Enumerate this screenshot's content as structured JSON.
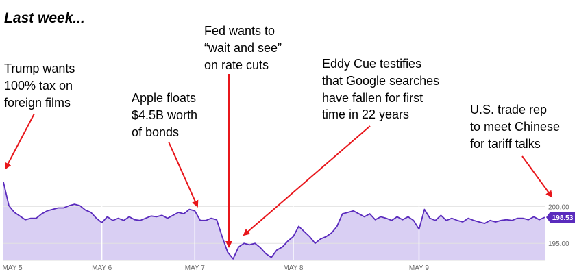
{
  "chart_data": {
    "type": "line",
    "title": "Last week...",
    "color": "#5a2bbd",
    "fill": "#d9cff3",
    "values": [
      203.3,
      200.1,
      199.2,
      198.7,
      198.2,
      198.4,
      198.4,
      199.0,
      199.4,
      199.6,
      199.8,
      199.8,
      200.1,
      200.3,
      200.1,
      199.5,
      199.2,
      198.4,
      197.8,
      198.6,
      198.1,
      198.4,
      198.1,
      198.6,
      198.2,
      198.1,
      198.4,
      198.7,
      198.6,
      198.8,
      198.4,
      198.8,
      199.2,
      199.0,
      199.6,
      199.4,
      198.1,
      198.1,
      198.4,
      198.2,
      195.9,
      193.8,
      192.9,
      194.5,
      195.0,
      194.8,
      195.0,
      194.4,
      193.6,
      193.1,
      194.1,
      194.5,
      195.3,
      195.9,
      197.3,
      196.6,
      195.9,
      195.0,
      195.6,
      195.9,
      196.4,
      197.3,
      199.0,
      199.2,
      199.4,
      199.0,
      198.6,
      199.0,
      198.2,
      198.6,
      198.4,
      198.1,
      198.6,
      198.2,
      198.6,
      198.1,
      196.9,
      199.6,
      198.4,
      198.1,
      198.8,
      198.1,
      198.4,
      198.1,
      197.9,
      198.4,
      198.1,
      197.9,
      197.7,
      198.1,
      197.9,
      198.1,
      198.2,
      198.1,
      198.4,
      198.4,
      198.2,
      198.6,
      198.2,
      198.53
    ],
    "xlim": [
      0,
      99
    ],
    "xticks": [
      {
        "value": 0,
        "label": "MAY 5"
      },
      {
        "value": 18,
        "label": "MAY 6"
      },
      {
        "value": 35,
        "label": "MAY 7"
      },
      {
        "value": 53,
        "label": "MAY 8"
      },
      {
        "value": 76,
        "label": "MAY 9"
      }
    ],
    "ylim": [
      192.7,
      204.3
    ],
    "yticks": [
      {
        "value": 195,
        "label": "195.00"
      },
      {
        "value": 200,
        "label": "200.00"
      }
    ],
    "last_price": {
      "value": 198.53,
      "label": "198.53"
    },
    "annotations": [
      {
        "lines": [
          "Trump wants",
          "100% tax on",
          "foreign films"
        ]
      },
      {
        "lines": [
          "Apple floats",
          "$4.5B worth",
          "of bonds"
        ]
      },
      {
        "lines": [
          "Fed wants to",
          "“wait and see”",
          "on rate cuts"
        ]
      },
      {
        "lines": [
          "Eddy Cue testifies",
          "that Google searches",
          "have fallen for first",
          "time in 22 years"
        ]
      },
      {
        "lines": [
          "U.S. trade rep",
          "to meet Chinese",
          "for tariff talks"
        ]
      }
    ]
  }
}
